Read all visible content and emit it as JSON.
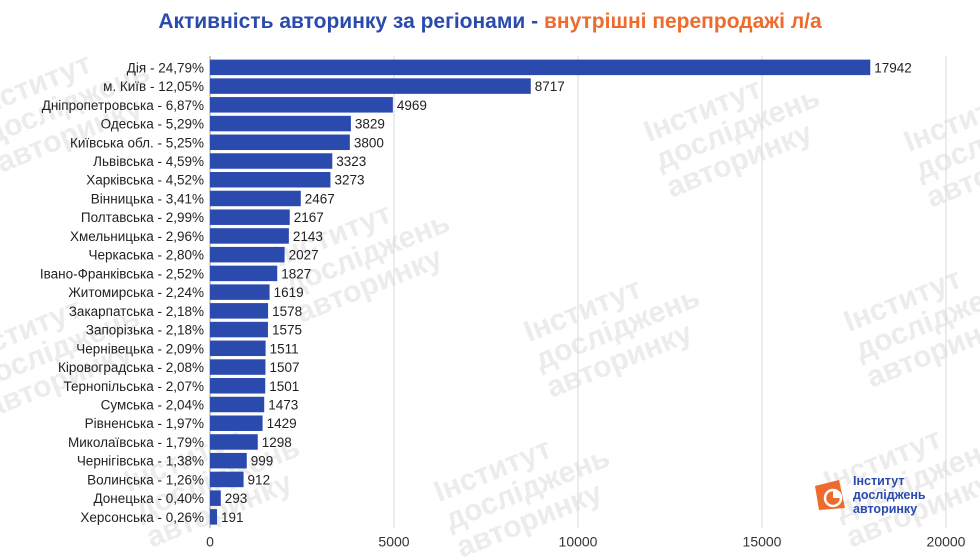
{
  "title_part1": "Активність авторинку за регіонами - ",
  "title_part2": "внутрішні перепродажі л/а",
  "watermark": [
    "Інститут",
    "досліджень",
    "авторинку"
  ],
  "logo_text": [
    "Інститут",
    "досліджень",
    "авторинку"
  ],
  "colors": {
    "bar": "#2b4aae",
    "title_main": "#2b4aae",
    "title_accent": "#ec6b2d",
    "logo_orange": "#ec6b2d",
    "logo_blue": "#2b4aae"
  },
  "chart_data": {
    "type": "bar",
    "orientation": "horizontal",
    "title": "Активність авторинку за регіонами - внутрішні перепродажі л/а",
    "categories": [
      "Дія - 24,79%",
      "м. Київ - 12,05%",
      "Дніпропетровська - 6,87%",
      "Одеська - 5,29%",
      "Київська обл. - 5,25%",
      "Львівська - 4,59%",
      "Харківська - 4,52%",
      "Вінницька - 3,41%",
      "Полтавська - 2,99%",
      "Хмельницька - 2,96%",
      "Черкаська - 2,80%",
      "Івано-Франківська - 2,52%",
      "Житомирська - 2,24%",
      "Закарпатська - 2,18%",
      "Запорізька - 2,18%",
      "Чернівецька - 2,09%",
      "Кіровоградська - 2,08%",
      "Тернопільська - 2,07%",
      "Сумська - 2,04%",
      "Рівненська - 1,97%",
      "Миколаївська - 1,79%",
      "Чернігівська - 1,38%",
      "Волинська - 1,26%",
      "Донецька - 0,40%",
      "Херсонська - 0,26%"
    ],
    "values": [
      17942,
      8717,
      4969,
      3829,
      3800,
      3323,
      3273,
      2467,
      2167,
      2143,
      2027,
      1827,
      1619,
      1578,
      1575,
      1511,
      1507,
      1501,
      1473,
      1429,
      1298,
      999,
      912,
      293,
      191
    ],
    "value_labels": [
      "17942",
      "8717",
      "4969",
      "3829",
      "3800",
      "3323",
      "3273",
      "2467",
      "2167",
      "2143",
      "2027",
      "1827",
      "1619",
      "1578",
      "1575",
      "1511",
      "1507",
      "1501",
      "1473",
      "1429",
      "1298",
      "999",
      "912",
      "293",
      "191"
    ],
    "xlim": [
      0,
      20000
    ],
    "xticks": [
      0,
      5000,
      10000,
      15000,
      20000
    ],
    "xtick_labels": [
      "0",
      "5000",
      "10000",
      "15000",
      "20000"
    ],
    "grid": "vertical",
    "legend": "none"
  }
}
